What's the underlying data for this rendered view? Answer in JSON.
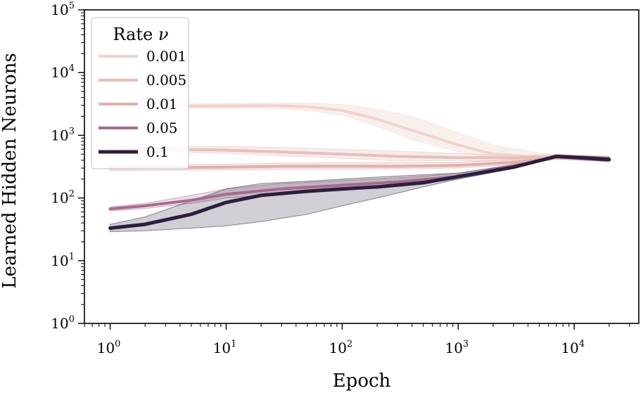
{
  "chart_data": {
    "type": "line",
    "xscale": "log",
    "yscale": "log",
    "xlabel": "Epoch",
    "ylabel": "Learned Hidden Neurons",
    "xlim": [
      0.6,
      36000
    ],
    "ylim": [
      1,
      100000
    ],
    "x_ticks": [
      {
        "base": "10",
        "exp": "0",
        "value": 1
      },
      {
        "base": "10",
        "exp": "1",
        "value": 10
      },
      {
        "base": "10",
        "exp": "2",
        "value": 100
      },
      {
        "base": "10",
        "exp": "3",
        "value": 1000
      },
      {
        "base": "10",
        "exp": "4",
        "value": 10000
      }
    ],
    "y_ticks": [
      {
        "base": "10",
        "exp": "0",
        "value": 1
      },
      {
        "base": "10",
        "exp": "1",
        "value": 10
      },
      {
        "base": "10",
        "exp": "2",
        "value": 100
      },
      {
        "base": "10",
        "exp": "3",
        "value": 1000
      },
      {
        "base": "10",
        "exp": "4",
        "value": 10000
      },
      {
        "base": "10",
        "exp": "5",
        "value": 100000
      }
    ],
    "legend": {
      "title_text": "Rate ",
      "title_symbol": "ν",
      "position": "top-left"
    },
    "series": [
      {
        "name": "0.001",
        "color": "#efd3cd",
        "band_opacity": 0.35,
        "x": [
          1,
          3,
          10,
          30,
          50,
          100,
          200,
          400,
          1000,
          2000,
          5000,
          8000,
          20000
        ],
        "y": [
          2800,
          2900,
          2950,
          2950,
          2850,
          2500,
          1800,
          1200,
          700,
          500,
          450,
          440,
          420
        ],
        "low": [
          2600,
          2700,
          2700,
          2650,
          2500,
          2100,
          1400,
          850,
          550,
          430,
          410,
          410,
          380
        ],
        "high": [
          3050,
          3150,
          3200,
          3250,
          3300,
          3100,
          2600,
          2000,
          1100,
          700,
          520,
          490,
          470
        ]
      },
      {
        "name": "0.005",
        "color": "#e7c0bb",
        "band_opacity": 0.3,
        "x": [
          1,
          3,
          10,
          30,
          100,
          300,
          1000,
          3000,
          7000,
          20000
        ],
        "y": [
          620,
          600,
          580,
          540,
          500,
          460,
          440,
          440,
          450,
          420
        ],
        "low": [
          560,
          540,
          520,
          470,
          430,
          390,
          390,
          400,
          420,
          390
        ],
        "high": [
          690,
          670,
          660,
          640,
          600,
          560,
          510,
          480,
          490,
          460
        ]
      },
      {
        "name": "0.01",
        "color": "#dfb1ad",
        "band_opacity": 0.3,
        "x": [
          1,
          3,
          10,
          30,
          100,
          300,
          1000,
          3000,
          7000,
          20000
        ],
        "y": [
          300,
          305,
          310,
          320,
          320,
          320,
          330,
          370,
          440,
          410
        ],
        "low": [
          270,
          275,
          280,
          285,
          285,
          290,
          300,
          340,
          410,
          380
        ],
        "high": [
          335,
          340,
          345,
          360,
          365,
          365,
          370,
          410,
          480,
          450
        ]
      },
      {
        "name": "0.05",
        "color": "#a66a8c",
        "band_opacity": 0.22,
        "x": [
          1,
          2,
          5,
          10,
          30,
          100,
          300,
          1000,
          3000,
          7000,
          20000
        ],
        "y": [
          67,
          75,
          92,
          115,
          140,
          160,
          180,
          220,
          320,
          460,
          410
        ],
        "low": [
          62,
          68,
          82,
          100,
          115,
          130,
          155,
          200,
          300,
          430,
          380
        ],
        "high": [
          72,
          82,
          110,
          140,
          170,
          190,
          210,
          245,
          345,
          490,
          450
        ]
      },
      {
        "name": "0.1",
        "color": "#2c1e3e",
        "band_opacity": 0.22,
        "x": [
          1,
          2,
          5,
          10,
          20,
          50,
          100,
          200,
          500,
          1000,
          3000,
          7000,
          20000
        ],
        "y": [
          33,
          38,
          55,
          85,
          110,
          128,
          140,
          150,
          175,
          220,
          310,
          460,
          410
        ],
        "low": [
          29,
          30,
          33,
          36,
          42,
          55,
          75,
          100,
          150,
          200,
          295,
          440,
          385
        ],
        "high": [
          38,
          50,
          90,
          140,
          170,
          185,
          200,
          215,
          235,
          250,
          335,
          485,
          445
        ]
      }
    ]
  }
}
